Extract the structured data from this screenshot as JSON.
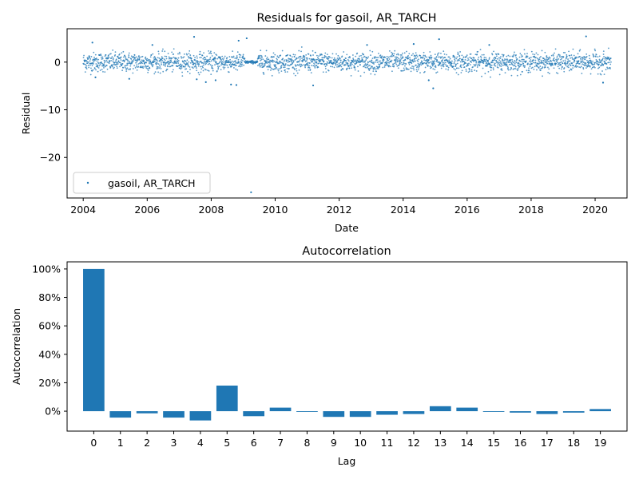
{
  "chart_data": [
    {
      "type": "scatter",
      "title": "Residuals for gasoil, AR_TARCH",
      "xlabel": "Date",
      "ylabel": "Residual",
      "xlim": [
        "2003-07-01",
        "2020-12-31"
      ],
      "ylim": [
        -28.5,
        7
      ],
      "x_ticks": [
        2004,
        2006,
        2008,
        2010,
        2012,
        2014,
        2016,
        2018,
        2020
      ],
      "x_tick_labels": [
        "2004",
        "2006",
        "2008",
        "2010",
        "2012",
        "2014",
        "2016",
        "2018",
        "2020"
      ],
      "y_ticks": [
        0,
        -10,
        -20
      ],
      "y_tick_labels": [
        "0",
        "−10",
        "−20"
      ],
      "x_range": [
        "2004-01-02",
        "2020-07-01"
      ],
      "typical_spread_sd": 1.0,
      "series": [
        {
          "name": "gasoil, AR_TARCH",
          "color": "#1f77b4",
          "marker": "point",
          "outliers": [
            {
              "x": "2004-04-15",
              "y": 4.1
            },
            {
              "x": "2004-05-20",
              "y": -3.2
            },
            {
              "x": "2005-06-10",
              "y": -3.5
            },
            {
              "x": "2006-03-01",
              "y": 3.6
            },
            {
              "x": "2007-06-20",
              "y": 5.3
            },
            {
              "x": "2007-07-20",
              "y": -3.6
            },
            {
              "x": "2007-11-01",
              "y": -4.2
            },
            {
              "x": "2008-02-20",
              "y": -3.8
            },
            {
              "x": "2008-08-15",
              "y": -4.7
            },
            {
              "x": "2008-10-15",
              "y": -4.8
            },
            {
              "x": "2008-11-10",
              "y": 4.5
            },
            {
              "x": "2009-02-10",
              "y": 5.0
            },
            {
              "x": "2009-04-01",
              "y": -27.3
            },
            {
              "x": "2011-03-10",
              "y": -4.9
            },
            {
              "x": "2012-11-15",
              "y": 3.6
            },
            {
              "x": "2014-05-01",
              "y": 3.8
            },
            {
              "x": "2014-10-20",
              "y": -3.8
            },
            {
              "x": "2014-12-10",
              "y": -5.5
            },
            {
              "x": "2015-02-15",
              "y": 4.8
            },
            {
              "x": "2016-09-10",
              "y": 3.6
            },
            {
              "x": "2019-09-20",
              "y": 5.4
            },
            {
              "x": "2020-04-01",
              "y": -4.3
            }
          ]
        }
      ],
      "legend": {
        "placement": "lower-left",
        "label": "gasoil, AR_TARCH"
      },
      "grid": false
    },
    {
      "type": "bar",
      "title": "Autocorrelation",
      "xlabel": "Lag",
      "ylabel": "Autocorrelation",
      "ylim": [
        -14,
        105
      ],
      "y_ticks": [
        0,
        20,
        40,
        60,
        80,
        100
      ],
      "y_tick_labels": [
        "0%",
        "20%",
        "40%",
        "60%",
        "80%",
        "100%"
      ],
      "categories": [
        "0",
        "1",
        "2",
        "3",
        "4",
        "5",
        "6",
        "7",
        "8",
        "9",
        "10",
        "11",
        "12",
        "13",
        "14",
        "15",
        "16",
        "17",
        "18",
        "19"
      ],
      "values": [
        100,
        -4.5,
        -1.5,
        -4.5,
        -6.5,
        18,
        -3.5,
        2.5,
        -0.5,
        -4,
        -4,
        -2.5,
        -2,
        3.5,
        2.5,
        -0.5,
        -1,
        -2,
        -1,
        1.5
      ],
      "color": "#1f77b4",
      "grid": false
    }
  ]
}
